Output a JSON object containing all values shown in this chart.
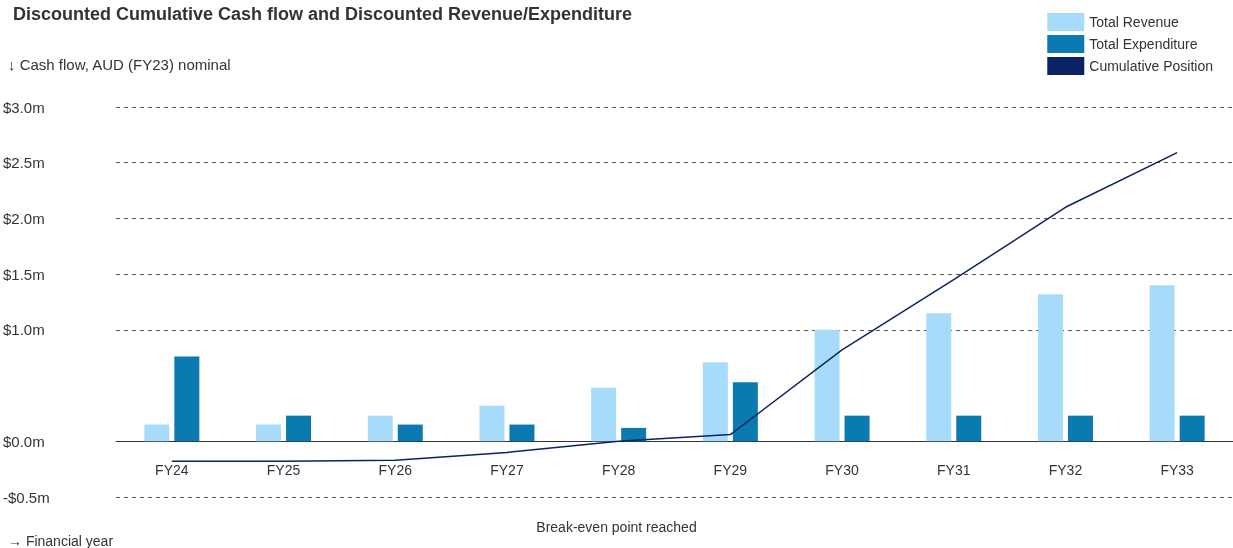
{
  "chart_data": {
    "type": "bar",
    "title": "Discounted Cumulative Cash flow and Discounted Revenue/Expenditure",
    "ylabel": "↓ Cash flow, AUD (FY23) nominal",
    "xlabel": "→ Financial year",
    "categories": [
      "FY24",
      "FY25",
      "FY26",
      "FY27",
      "FY28",
      "FY29",
      "FY30",
      "FY31",
      "FY32",
      "FY33"
    ],
    "series": [
      {
        "name": "Total Revenue",
        "color": "#a6dcfa",
        "values": [
          0.15,
          0.15,
          0.23,
          0.32,
          0.48,
          0.71,
          1.0,
          1.15,
          1.32,
          1.4
        ]
      },
      {
        "name": "Total Expenditure",
        "color": "#0a7ab0",
        "values": [
          0.76,
          0.23,
          0.15,
          0.15,
          0.12,
          0.53,
          0.23,
          0.23,
          0.23,
          0.23
        ]
      },
      {
        "name": "Cumulative Position",
        "type": "line",
        "color": "#0b2265",
        "values": [
          -0.18,
          -0.18,
          -0.17,
          -0.1,
          0.0,
          0.06,
          0.82,
          1.45,
          2.1,
          2.59
        ]
      }
    ],
    "ylim": [
      -0.5,
      3.0
    ],
    "yticks": [
      {
        "value": -0.5,
        "label": "-$0.5m"
      },
      {
        "value": 0,
        "label": "$0.0m"
      },
      {
        "value": 1.0,
        "label": "$1.0m"
      },
      {
        "value": 1.5,
        "label": "$1.5m"
      },
      {
        "value": 2.0,
        "label": "$2.0m"
      },
      {
        "value": 2.5,
        "label": "$2.5m"
      },
      {
        "value": 3.0,
        "label": "$3.0m"
      }
    ],
    "annotations": [
      "Break-even point reached"
    ],
    "grid": "y",
    "legend": "top right",
    "marker": "none",
    "line_style": "solid"
  }
}
